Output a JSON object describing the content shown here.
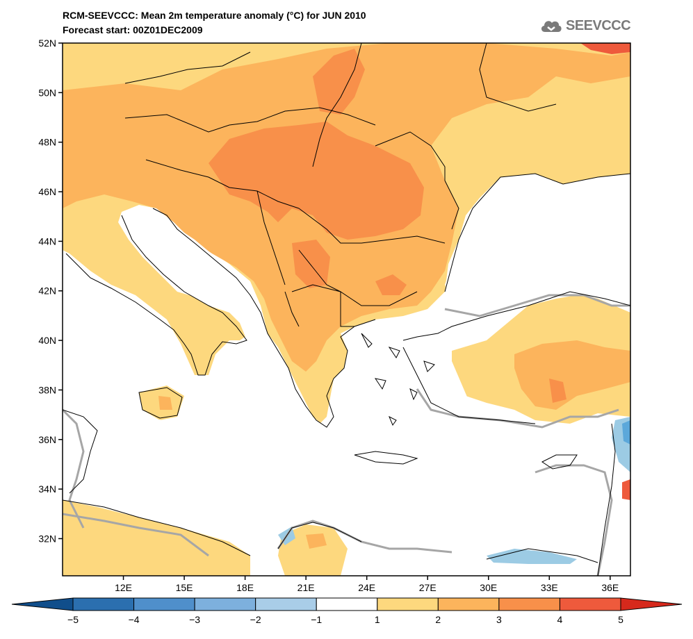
{
  "title": {
    "line1": "RCM-SEEVCCC: Mean 2m temperature anomaly (°C) for JUN 2010",
    "line2": "Forecast start: 00Z01DEC2009"
  },
  "logo": {
    "text": "SEEVCCC",
    "icon": "cloud-logo-icon",
    "color": "#7a7a7a"
  },
  "map": {
    "lat_labels": [
      "52N",
      "50N",
      "48N",
      "46N",
      "44N",
      "42N",
      "40N",
      "38N",
      "36N",
      "34N",
      "32N"
    ],
    "lon_labels": [
      "12E",
      "15E",
      "18E",
      "21E",
      "24E",
      "27E",
      "30E",
      "33E",
      "36E"
    ],
    "lat_range": [
      30.5,
      52
    ],
    "lon_range": [
      9,
      37
    ],
    "colors": {
      "one_two": "#fdd87e",
      "two_three": "#fcb45c",
      "three_four": "#f8904a",
      "four_five": "#ee5a3c",
      "neg_one_two": "#9ccbe4",
      "neg_two_three": "#5ca8da",
      "country": "#000000",
      "coast_grey": "#a6a6a6"
    }
  },
  "colorbar": {
    "labels": [
      "−5",
      "−4",
      "−3",
      "−2",
      "−1",
      "1",
      "2",
      "3",
      "4",
      "5"
    ],
    "colors": [
      "#104e8b",
      "#2b6faf",
      "#4f8fcb",
      "#7db0dd",
      "#a9cde8",
      "#ffffff",
      "#fdd87e",
      "#fcb45c",
      "#f8904a",
      "#ee5a3c",
      "#d6291c"
    ]
  }
}
